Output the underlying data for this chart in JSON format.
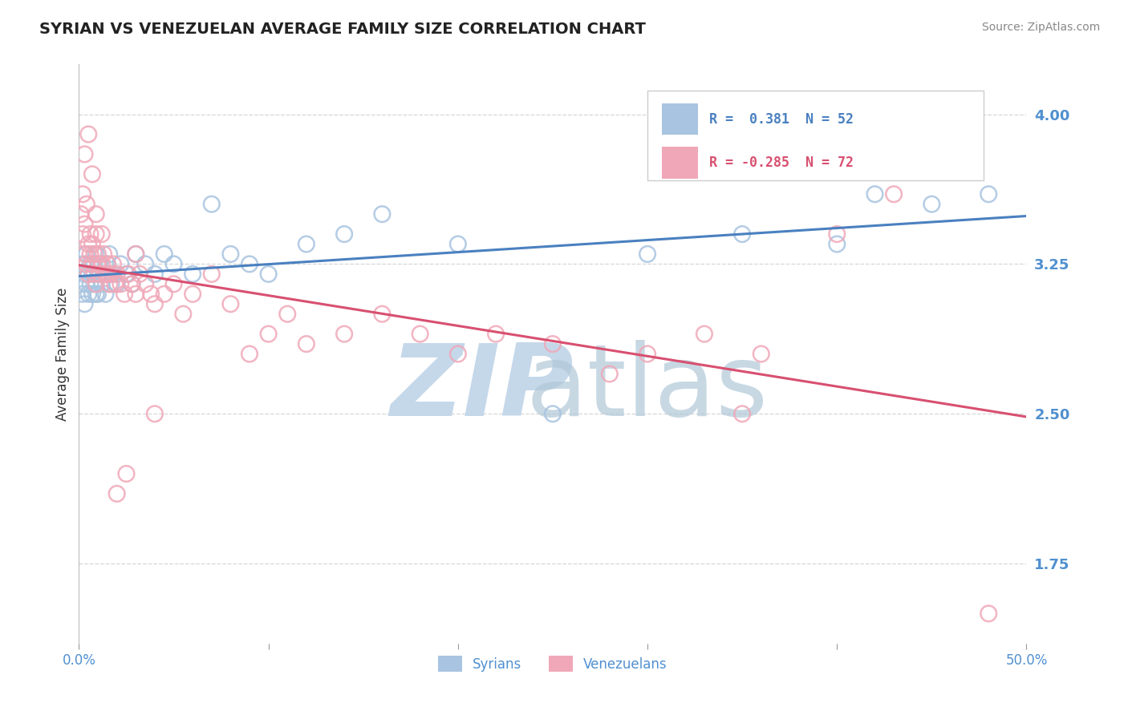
{
  "title": "SYRIAN VS VENEZUELAN AVERAGE FAMILY SIZE CORRELATION CHART",
  "source": "Source: ZipAtlas.com",
  "ylabel": "Average Family Size",
  "xlim": [
    0.0,
    0.5
  ],
  "ylim": [
    1.35,
    4.25
  ],
  "yticks": [
    1.75,
    2.5,
    3.25,
    4.0
  ],
  "xticks": [
    0.0,
    0.1,
    0.2,
    0.3,
    0.4,
    0.5
  ],
  "xticklabels": [
    "0.0%",
    "",
    "",
    "",
    "",
    "50.0%"
  ],
  "blue_color": "#a8c4e0",
  "pink_color": "#f0a8b8",
  "blue_line_color": "#4a80c0",
  "pink_line_color": "#d85070",
  "title_fontsize": 14,
  "axis_tick_color": "#5090d0",
  "ylabel_color": "#333333",
  "grid_color": "#cccccc",
  "background_color": "#ffffff",
  "syrians_x": [
    0.001,
    0.002,
    0.002,
    0.003,
    0.003,
    0.004,
    0.004,
    0.005,
    0.005,
    0.006,
    0.006,
    0.007,
    0.007,
    0.008,
    0.008,
    0.009,
    0.009,
    0.01,
    0.01,
    0.011,
    0.012,
    0.013,
    0.014,
    0.015,
    0.016,
    0.017,
    0.018,
    0.02,
    0.022,
    0.025,
    0.028,
    0.03,
    0.035,
    0.04,
    0.045,
    0.05,
    0.06,
    0.07,
    0.08,
    0.09,
    0.1,
    0.12,
    0.14,
    0.16,
    0.2,
    0.25,
    0.3,
    0.35,
    0.4,
    0.42,
    0.45,
    0.48
  ],
  "syrians_y": [
    3.15,
    3.25,
    3.1,
    3.2,
    3.05,
    3.3,
    3.15,
    3.2,
    3.1,
    3.25,
    3.15,
    3.2,
    3.1,
    3.25,
    3.15,
    3.3,
    3.1,
    3.2,
    3.1,
    3.25,
    3.15,
    3.2,
    3.1,
    3.25,
    3.3,
    3.15,
    3.2,
    3.15,
    3.25,
    3.2,
    3.15,
    3.3,
    3.25,
    3.2,
    3.3,
    3.25,
    3.2,
    3.55,
    3.3,
    3.25,
    3.2,
    3.35,
    3.4,
    3.5,
    3.35,
    2.5,
    3.3,
    3.4,
    3.35,
    3.6,
    3.55,
    3.6
  ],
  "venezuelans_x": [
    0.001,
    0.002,
    0.002,
    0.003,
    0.003,
    0.004,
    0.004,
    0.005,
    0.005,
    0.006,
    0.006,
    0.007,
    0.007,
    0.008,
    0.008,
    0.009,
    0.009,
    0.01,
    0.01,
    0.011,
    0.012,
    0.013,
    0.014,
    0.015,
    0.016,
    0.017,
    0.018,
    0.019,
    0.02,
    0.022,
    0.024,
    0.026,
    0.028,
    0.03,
    0.032,
    0.035,
    0.038,
    0.04,
    0.045,
    0.05,
    0.055,
    0.06,
    0.07,
    0.08,
    0.09,
    0.1,
    0.11,
    0.12,
    0.14,
    0.16,
    0.18,
    0.2,
    0.22,
    0.25,
    0.28,
    0.3,
    0.33,
    0.36,
    0.4,
    0.43,
    0.003,
    0.005,
    0.007,
    0.009,
    0.012,
    0.015,
    0.02,
    0.025,
    0.03,
    0.04,
    0.35,
    0.48
  ],
  "venezuelans_y": [
    3.5,
    3.6,
    3.4,
    3.3,
    3.45,
    3.55,
    3.25,
    3.35,
    3.2,
    3.3,
    3.4,
    3.25,
    3.35,
    3.2,
    3.3,
    3.4,
    3.15,
    3.25,
    3.3,
    3.2,
    3.25,
    3.3,
    3.2,
    3.25,
    3.15,
    3.2,
    3.25,
    3.15,
    3.2,
    3.15,
    3.1,
    3.2,
    3.15,
    3.1,
    3.2,
    3.15,
    3.1,
    3.05,
    3.1,
    3.15,
    3.0,
    3.1,
    3.2,
    3.05,
    2.8,
    2.9,
    3.0,
    2.85,
    2.9,
    3.0,
    2.9,
    2.8,
    2.9,
    2.85,
    2.7,
    2.8,
    2.9,
    2.8,
    3.4,
    3.6,
    3.8,
    3.9,
    3.7,
    3.5,
    3.4,
    3.2,
    2.1,
    2.2,
    3.3,
    2.5,
    2.5,
    1.5
  ]
}
